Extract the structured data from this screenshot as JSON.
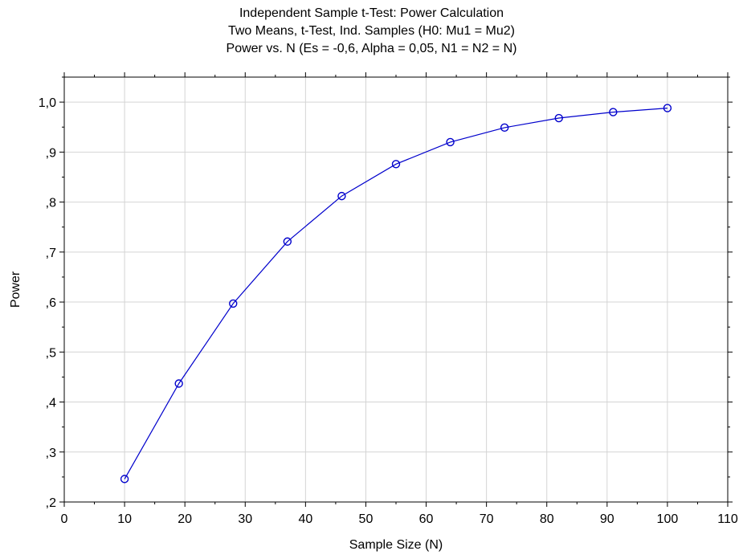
{
  "chart_data": {
    "type": "line",
    "title": "Independent Sample t-Test: Power Calculation",
    "subtitle": [
      "Two Means, t-Test, Ind. Samples (H0:  Mu1 = Mu2)",
      "Power vs. N (Es = -0,6, Alpha = 0,05, N1 = N2 = N)"
    ],
    "xlabel": "Sample Size (N)",
    "ylabel": "Power",
    "xlim": [
      0,
      110
    ],
    "ylim": [
      0.2,
      1.05
    ],
    "xticks": [
      0,
      10,
      20,
      30,
      40,
      50,
      60,
      70,
      80,
      90,
      100,
      110
    ],
    "xtick_labels": [
      "0",
      "10",
      "20",
      "30",
      "40",
      "50",
      "60",
      "70",
      "80",
      "90",
      "100",
      "110"
    ],
    "yticks": [
      0.2,
      0.3,
      0.4,
      0.5,
      0.6,
      0.7,
      0.8,
      0.9,
      1.0
    ],
    "ytick_labels": [
      ",2",
      ",3",
      ",4",
      ",5",
      ",6",
      ",7",
      ",8",
      ",9",
      "1,0"
    ],
    "grid": true,
    "series": [
      {
        "x": [
          10,
          19,
          28,
          37,
          46,
          55,
          64,
          73,
          82,
          91,
          100
        ],
        "y": [
          0.246,
          0.437,
          0.597,
          0.721,
          0.812,
          0.876,
          0.92,
          0.949,
          0.968,
          0.98,
          0.988
        ],
        "marker": "open-circle",
        "color": "#0000cc"
      }
    ]
  }
}
